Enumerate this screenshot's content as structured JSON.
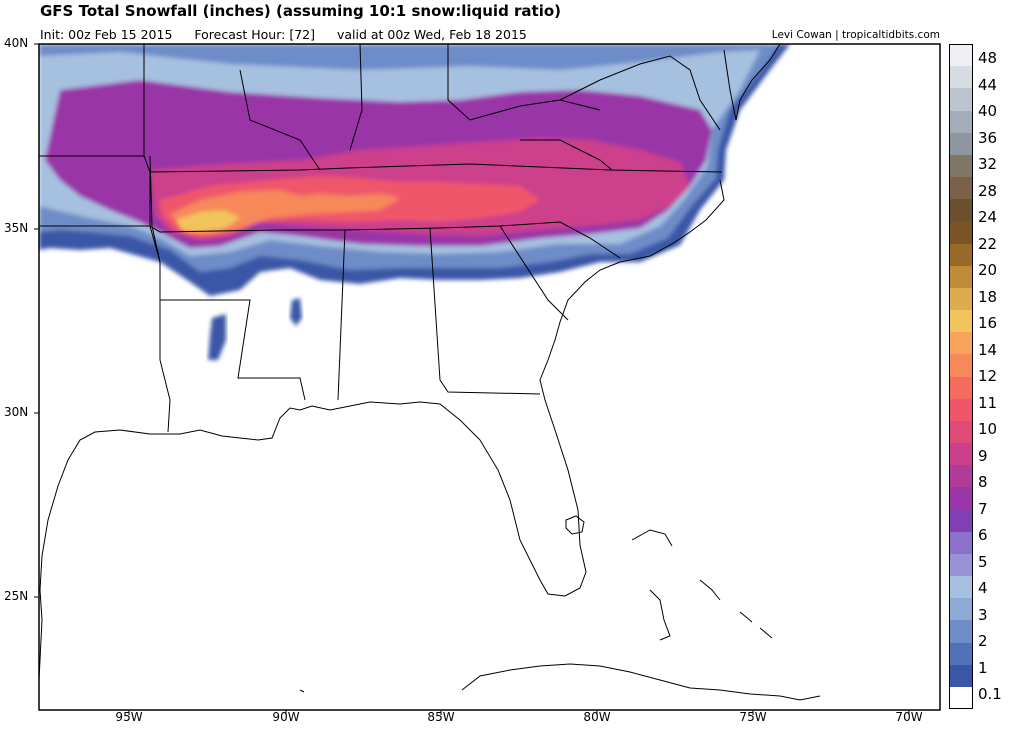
{
  "header": {
    "title": "GFS Total Snowfall (inches) (assuming 10:1 snow:liquid ratio)",
    "init": "Init: 00z Feb 15 2015",
    "forecast_hour": "Forecast Hour: [72]",
    "valid": "valid at 00z Wed, Feb 18 2015",
    "credit": "Levi Cowan | tropicaltidbits.com"
  },
  "map": {
    "lat_labels": [
      "40N",
      "35N",
      "30N",
      "25N"
    ],
    "lon_labels": [
      "95W",
      "90W",
      "85W",
      "80W",
      "75W",
      "70W"
    ]
  },
  "colorbar": {
    "labels": [
      "48",
      "44",
      "40",
      "36",
      "32",
      "28",
      "24",
      "22",
      "20",
      "18",
      "16",
      "14",
      "12",
      "11",
      "10",
      "9",
      "8",
      "7",
      "6",
      "5",
      "4",
      "3",
      "2",
      "1",
      "0.1"
    ],
    "colors": [
      "#eef0f3",
      "#d7dce3",
      "#bcc4cf",
      "#a3acb9",
      "#8f969f",
      "#807666",
      "#7a6147",
      "#6d5030",
      "#7a5424",
      "#99692a",
      "#c08c3a",
      "#ddac4e",
      "#f2c45c",
      "#f7a45a",
      "#f7885a",
      "#f56c5c",
      "#f0566a",
      "#e04a78",
      "#cc3f8c",
      "#b03c9a",
      "#9a36a8",
      "#8040b4",
      "#8c70cc",
      "#9a92d6",
      "#a6c0e0",
      "#8eaad4",
      "#6e8cc8",
      "#5272b8",
      "#3a56a6",
      "#ffffff"
    ]
  }
}
